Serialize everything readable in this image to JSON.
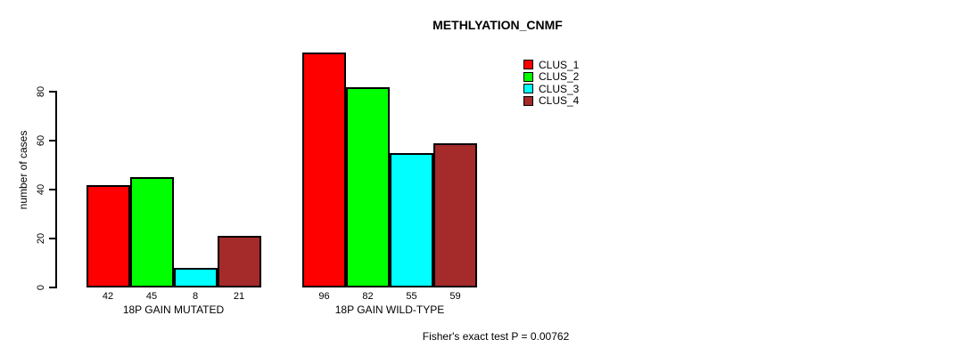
{
  "chart_data": {
    "type": "bar",
    "title": "METHLYATION_CNMF",
    "ylabel": "number of cases",
    "xlabel": "",
    "annotation": "Fisher's exact test P = 0.00762",
    "yticks": [
      0,
      20,
      40,
      60,
      80
    ],
    "ylim": [
      0,
      96
    ],
    "grid": false,
    "legend_position": "top-right",
    "show_value_labels": true,
    "categories": [
      "18P GAIN MUTATED",
      "18P GAIN WILD-TYPE"
    ],
    "series": [
      {
        "name": "CLUS_1",
        "color": "#ff0000",
        "values": [
          42,
          96
        ]
      },
      {
        "name": "CLUS_2",
        "color": "#00ff00",
        "values": [
          45,
          82
        ]
      },
      {
        "name": "CLUS_3",
        "color": "#00ffff",
        "values": [
          8,
          55
        ]
      },
      {
        "name": "CLUS_4",
        "color": "#a52a2a",
        "values": [
          21,
          59
        ]
      }
    ]
  },
  "colors": {
    "axis": "#000000",
    "text": "#000000",
    "background": "#ffffff"
  }
}
